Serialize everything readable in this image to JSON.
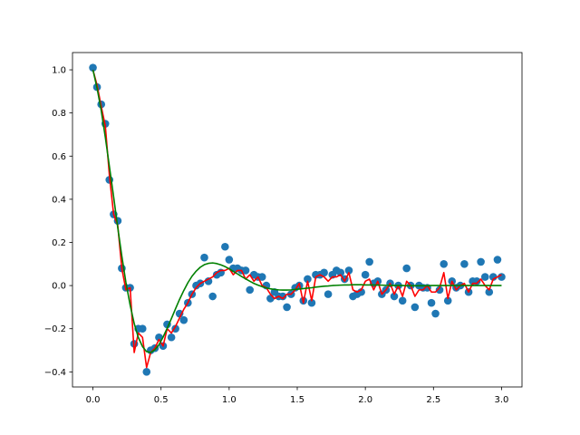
{
  "chart_data": {
    "type": "scatter",
    "title": "",
    "xlabel": "",
    "ylabel": "",
    "xlim": [
      -0.15,
      3.15
    ],
    "ylim": [
      -0.47,
      1.08
    ],
    "grid": false,
    "legend": "none",
    "x_ticks": [
      0.0,
      0.5,
      1.0,
      1.5,
      2.0,
      2.5,
      3.0
    ],
    "x_tick_labels": [
      "0.0",
      "0.5",
      "1.0",
      "1.5",
      "2.0",
      "2.5",
      "3.0"
    ],
    "y_ticks": [
      -0.4,
      -0.2,
      0.0,
      0.2,
      0.4,
      0.6,
      0.8,
      1.0
    ],
    "y_tick_labels": [
      "−0.4",
      "−0.2",
      "0.0",
      "0.2",
      "0.4",
      "0.6",
      "0.8",
      "1.0"
    ],
    "x": [
      0.0,
      0.03,
      0.061,
      0.091,
      0.121,
      0.152,
      0.182,
      0.212,
      0.242,
      0.273,
      0.303,
      0.333,
      0.364,
      0.394,
      0.424,
      0.455,
      0.485,
      0.515,
      0.545,
      0.576,
      0.606,
      0.636,
      0.667,
      0.697,
      0.727,
      0.758,
      0.788,
      0.818,
      0.848,
      0.879,
      0.909,
      0.939,
      0.97,
      1.0,
      1.03,
      1.061,
      1.091,
      1.121,
      1.152,
      1.182,
      1.212,
      1.242,
      1.273,
      1.303,
      1.333,
      1.364,
      1.394,
      1.424,
      1.455,
      1.485,
      1.515,
      1.545,
      1.576,
      1.606,
      1.636,
      1.667,
      1.697,
      1.727,
      1.758,
      1.788,
      1.818,
      1.848,
      1.879,
      1.909,
      1.939,
      1.97,
      2.0,
      2.03,
      2.061,
      2.091,
      2.121,
      2.152,
      2.182,
      2.212,
      2.242,
      2.273,
      2.303,
      2.333,
      2.364,
      2.394,
      2.424,
      2.455,
      2.485,
      2.515,
      2.545,
      2.576,
      2.606,
      2.636,
      2.667,
      2.697,
      2.727,
      2.758,
      2.788,
      2.818,
      2.848,
      2.879,
      2.909,
      2.939,
      2.97,
      3.0
    ],
    "series": [
      {
        "type": "scatter",
        "color": "#1f77b4",
        "values": [
          1.01,
          0.92,
          0.84,
          0.75,
          0.49,
          0.33,
          0.3,
          0.08,
          -0.01,
          -0.01,
          -0.27,
          -0.2,
          -0.2,
          -0.4,
          -0.3,
          -0.29,
          -0.24,
          -0.28,
          -0.18,
          -0.24,
          -0.2,
          -0.13,
          -0.16,
          -0.08,
          -0.04,
          0.0,
          0.01,
          0.13,
          0.02,
          -0.05,
          0.05,
          0.06,
          0.18,
          0.12,
          0.08,
          0.08,
          0.07,
          0.07,
          -0.02,
          0.05,
          0.04,
          0.04,
          0.0,
          -0.06,
          -0.03,
          -0.05,
          -0.05,
          -0.1,
          -0.04,
          -0.01,
          0.0,
          -0.07,
          0.03,
          -0.08,
          0.05,
          0.05,
          0.06,
          -0.04,
          0.05,
          0.07,
          0.06,
          0.03,
          0.07,
          -0.05,
          -0.04,
          -0.03,
          0.05,
          0.11,
          0.01,
          0.02,
          -0.04,
          -0.02,
          0.01,
          -0.05,
          0.0,
          -0.07,
          0.08,
          0.0,
          -0.1,
          0.0,
          -0.01,
          -0.01,
          -0.08,
          -0.13,
          -0.02,
          0.1,
          -0.07,
          0.02,
          -0.01,
          0.0,
          0.1,
          -0.03,
          0.02,
          0.02,
          0.11,
          0.04,
          -0.03,
          0.04,
          0.12,
          0.04
        ]
      },
      {
        "type": "line",
        "color": "#ff0000",
        "values": [
          1.0,
          0.93,
          0.83,
          0.74,
          0.51,
          0.33,
          0.28,
          0.08,
          -0.02,
          -0.01,
          -0.31,
          -0.22,
          -0.24,
          -0.38,
          -0.31,
          -0.29,
          -0.25,
          -0.28,
          -0.2,
          -0.22,
          -0.19,
          -0.15,
          -0.11,
          -0.08,
          -0.04,
          -0.01,
          0.01,
          0.02,
          0.03,
          0.04,
          0.06,
          0.07,
          0.07,
          0.08,
          0.05,
          0.07,
          0.07,
          0.03,
          0.05,
          0.02,
          0.04,
          0.0,
          -0.01,
          -0.04,
          -0.06,
          -0.05,
          -0.06,
          -0.04,
          -0.04,
          -0.02,
          0.01,
          -0.08,
          0.02,
          -0.07,
          0.04,
          0.05,
          0.04,
          0.02,
          0.04,
          0.04,
          0.05,
          0.02,
          0.06,
          -0.02,
          -0.03,
          -0.02,
          0.02,
          0.03,
          -0.02,
          0.02,
          -0.04,
          -0.02,
          0.01,
          -0.04,
          0.0,
          -0.05,
          0.02,
          0.0,
          -0.05,
          -0.02,
          -0.02,
          0.0,
          -0.03,
          -0.03,
          -0.01,
          0.06,
          -0.06,
          0.02,
          -0.02,
          0.0,
          0.01,
          -0.03,
          0.01,
          0.01,
          0.03,
          0.0,
          -0.02,
          0.03,
          0.04,
          0.05
        ]
      },
      {
        "type": "line",
        "color": "#008000",
        "values": [
          1.0,
          0.916,
          0.811,
          0.687,
          0.552,
          0.411,
          0.27,
          0.137,
          0.015,
          -0.09,
          -0.176,
          -0.24,
          -0.283,
          -0.306,
          -0.31,
          -0.298,
          -0.274,
          -0.239,
          -0.198,
          -0.153,
          -0.108,
          -0.064,
          -0.023,
          0.013,
          0.043,
          0.067,
          0.085,
          0.097,
          0.103,
          0.105,
          0.102,
          0.096,
          0.088,
          0.078,
          0.066,
          0.054,
          0.042,
          0.031,
          0.02,
          0.01,
          0.002,
          -0.005,
          -0.011,
          -0.015,
          -0.018,
          -0.02,
          -0.021,
          -0.021,
          -0.02,
          -0.018,
          -0.016,
          -0.014,
          -0.012,
          -0.01,
          -0.007,
          -0.005,
          -0.003,
          -0.002,
          0.0,
          0.001,
          0.002,
          0.003,
          0.003,
          0.004,
          0.004,
          0.004,
          0.003,
          0.003,
          0.003,
          0.002,
          0.002,
          0.001,
          0.001,
          0.0,
          0.0,
          0.0,
          -0.001,
          -0.001,
          -0.001,
          -0.001,
          -0.001,
          -0.001,
          0.0,
          0.0,
          0.0,
          0.0,
          0.0,
          0.0,
          0.0,
          0.0,
          0.0,
          0.0,
          0.0,
          0.0,
          0.0,
          0.0,
          0.0,
          0.0,
          0.0,
          0.0
        ]
      }
    ]
  }
}
